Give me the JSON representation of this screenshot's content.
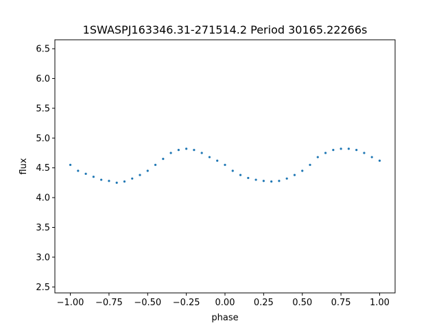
{
  "chart_data": {
    "type": "scatter",
    "title": "1SWASPJ163346.31-271514.2 Period 30165.22266s",
    "xlabel": "phase",
    "ylabel": "flux",
    "xlim": [
      -1.1,
      1.1
    ],
    "ylim": [
      2.4,
      6.65
    ],
    "xticks": [
      -1.0,
      -0.75,
      -0.5,
      -0.25,
      0.0,
      0.25,
      0.5,
      0.75,
      1.0
    ],
    "xtick_labels": [
      "−1.00",
      "−0.75",
      "−0.50",
      "−0.25",
      "0.00",
      "0.25",
      "0.50",
      "0.75",
      "1.00"
    ],
    "yticks": [
      2.5,
      3.0,
      3.5,
      4.0,
      4.5,
      5.0,
      5.5,
      6.0,
      6.5
    ],
    "ytick_labels": [
      "2.5",
      "3.0",
      "3.5",
      "4.0",
      "4.5",
      "5.0",
      "5.5",
      "6.0",
      "6.5"
    ],
    "grid": false,
    "legend": "none",
    "marker_color": "#1f77b4",
    "series": [
      {
        "x": [
          -1.0,
          -0.95,
          -0.9,
          -0.85,
          -0.8,
          -0.75,
          -0.7,
          -0.65,
          -0.6,
          -0.55,
          -0.5,
          -0.45,
          -0.4,
          -0.35,
          -0.3,
          -0.25,
          -0.2,
          -0.15,
          -0.1,
          -0.05,
          0.0,
          0.05,
          0.1,
          0.15,
          0.2,
          0.25,
          0.3,
          0.35,
          0.4,
          0.45,
          0.5,
          0.55,
          0.6,
          0.65,
          0.7,
          0.75,
          0.8,
          0.85,
          0.9,
          0.95,
          1.0
        ],
        "y": [
          4.55,
          4.45,
          4.4,
          4.35,
          4.3,
          4.28,
          4.25,
          4.27,
          4.32,
          4.38,
          4.45,
          4.55,
          4.65,
          4.75,
          4.8,
          4.82,
          4.8,
          4.75,
          4.68,
          4.62,
          4.55,
          4.45,
          4.38,
          4.33,
          4.3,
          4.28,
          4.27,
          4.28,
          4.32,
          4.38,
          4.45,
          4.55,
          4.68,
          4.75,
          4.8,
          4.82,
          4.82,
          4.8,
          4.75,
          4.68,
          4.62
        ]
      }
    ]
  }
}
